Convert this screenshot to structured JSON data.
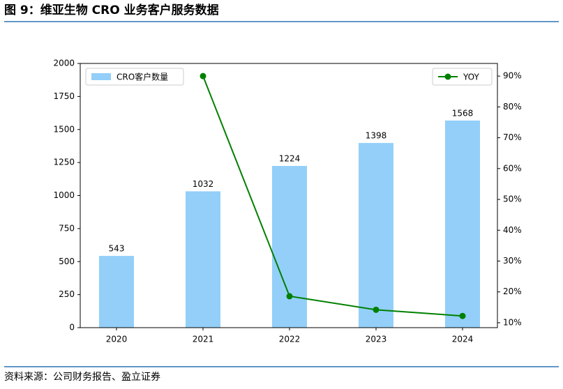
{
  "chart_data": {
    "type": "combo",
    "title": "图 9：维亚生物 CRO 业务客户服务数据",
    "source": "资料来源：公司财务报告、盈立证券",
    "categories": [
      "2020",
      "2021",
      "2022",
      "2023",
      "2024"
    ],
    "series": [
      {
        "name": "CRO客户数量",
        "type": "bar",
        "color": "#93cff9",
        "values": [
          543,
          1032,
          1224,
          1398,
          1568
        ]
      },
      {
        "name": "YOY",
        "type": "line",
        "color": "#008000",
        "axis": "y2",
        "values": [
          null,
          90,
          18.6,
          14.2,
          12.2
        ]
      }
    ],
    "ylim": [
      0,
      2000
    ],
    "yticks": [
      0,
      250,
      500,
      750,
      1000,
      1250,
      1500,
      1750,
      2000
    ],
    "y2lim": [
      8.4,
      94.1
    ],
    "y2ticks": [
      {
        "value": 10,
        "label": "10%"
      },
      {
        "value": 20,
        "label": "20%"
      },
      {
        "value": 30,
        "label": "30%"
      },
      {
        "value": 40,
        "label": "40%"
      },
      {
        "value": 50,
        "label": "50%"
      },
      {
        "value": 60,
        "label": "60%"
      },
      {
        "value": 70,
        "label": "70%"
      },
      {
        "value": 80,
        "label": "80%"
      },
      {
        "value": 90,
        "label": "90%"
      }
    ],
    "legend": [
      "upper left",
      "upper right"
    ]
  }
}
